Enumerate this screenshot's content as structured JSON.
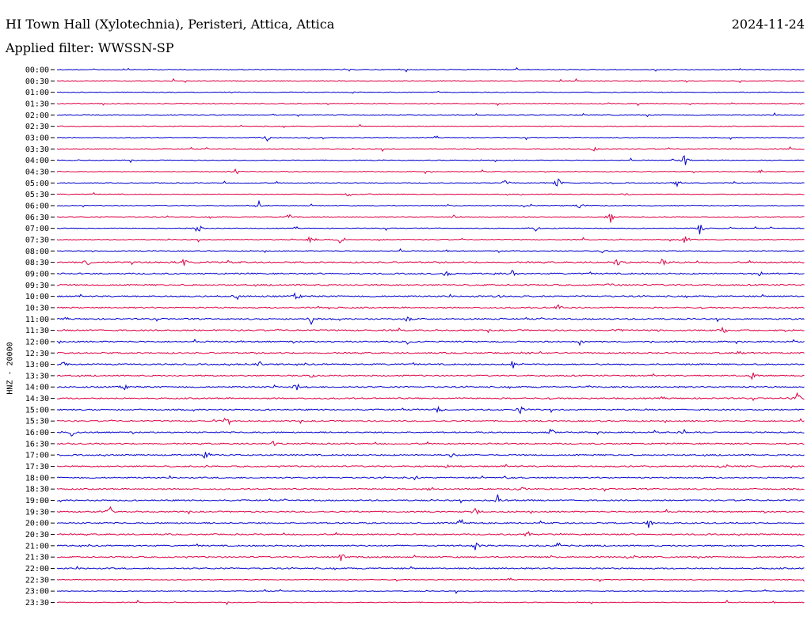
{
  "header": {
    "title": "HI Town Hall (Xylotechnia), Peristeri, Attica, Attica",
    "date": "2024-11-24",
    "filter": "Applied filter: WWSSN-SP"
  },
  "chart_data": {
    "type": "line",
    "title": "HI Town Hall (Xylotechnia), Peristeri, Attica, Attica",
    "ylabel": "HNZ - 20000",
    "xlabel": "",
    "colors": [
      "#0000cc",
      "#dd0044"
    ],
    "categories": [
      "00:00",
      "00:30",
      "01:00",
      "01:30",
      "02:00",
      "02:30",
      "03:00",
      "03:30",
      "04:00",
      "04:30",
      "05:00",
      "05:30",
      "06:00",
      "06:30",
      "07:00",
      "07:30",
      "08:00",
      "08:30",
      "09:00",
      "09:30",
      "10:00",
      "10:30",
      "11:00",
      "11:30",
      "12:00",
      "12:30",
      "13:00",
      "13:30",
      "14:00",
      "14:30",
      "15:00",
      "15:30",
      "16:00",
      "16:30",
      "17:00",
      "17:30",
      "18:00",
      "18:30",
      "19:00",
      "19:30",
      "20:00",
      "20:30",
      "21:00",
      "21:30",
      "22:00",
      "22:30",
      "23:00",
      "23:30"
    ],
    "events": [
      [],
      [],
      [],
      [],
      [],
      [],
      [
        [
          0.28,
          0.6
        ]
      ],
      [
        [
          0.72,
          0.4
        ]
      ],
      [
        [
          0.84,
          0.8
        ]
      ],
      [
        [
          0.24,
          0.5
        ],
        [
          0.94,
          0.3
        ]
      ],
      [
        [
          0.6,
          0.4
        ],
        [
          0.67,
          0.6
        ],
        [
          0.83,
          0.6
        ]
      ],
      [
        [
          0.39,
          0.3
        ],
        [
          0.76,
          0.3
        ]
      ],
      [
        [
          0.27,
          0.6
        ],
        [
          0.7,
          0.5
        ]
      ],
      [
        [
          0.31,
          0.5
        ],
        [
          0.53,
          0.3
        ],
        [
          0.74,
          0.7
        ]
      ],
      [
        [
          0.19,
          0.6
        ],
        [
          0.64,
          0.6
        ],
        [
          0.86,
          0.8
        ]
      ],
      [
        [
          0.34,
          0.6
        ],
        [
          0.38,
          0.6
        ],
        [
          0.84,
          0.6
        ]
      ],
      [
        [
          0.73,
          0.4
        ]
      ],
      [
        [
          0.04,
          0.6
        ],
        [
          0.17,
          0.6
        ],
        [
          0.75,
          0.4
        ],
        [
          0.81,
          0.4
        ]
      ],
      [
        [
          0.52,
          0.5
        ],
        [
          0.61,
          0.5
        ],
        [
          0.94,
          0.4
        ]
      ],
      [
        [
          0.74,
          0.4
        ]
      ],
      [
        [
          0.24,
          0.6
        ],
        [
          0.32,
          0.5
        ],
        [
          0.59,
          0.4
        ]
      ],
      [
        [
          0.35,
          0.4
        ],
        [
          0.67,
          0.4
        ]
      ],
      [
        [
          0.34,
          0.6
        ],
        [
          0.47,
          0.5
        ]
      ],
      [
        [
          0.75,
          0.4
        ],
        [
          0.89,
          0.5
        ]
      ],
      [
        [
          0.47,
          0.5
        ],
        [
          0.7,
          0.5
        ]
      ],
      [
        [
          0.63,
          0.3
        ],
        [
          0.91,
          0.4
        ]
      ],
      [
        [
          0.01,
          0.3
        ],
        [
          0.27,
          0.5
        ],
        [
          0.61,
          0.6
        ]
      ],
      [
        [
          0.34,
          0.4
        ],
        [
          0.93,
          0.6
        ]
      ],
      [
        [
          0.09,
          0.3
        ],
        [
          0.32,
          0.5
        ],
        [
          0.71,
          0.3
        ]
      ],
      [
        [
          0.99,
          0.8
        ]
      ],
      [
        [
          0.51,
          0.5
        ],
        [
          0.62,
          0.5
        ]
      ],
      [
        [
          0.23,
          0.4
        ]
      ],
      [
        [
          0.02,
          0.6
        ],
        [
          0.66,
          0.5
        ],
        [
          0.84,
          0.5
        ]
      ],
      [
        [
          0.29,
          0.3
        ]
      ],
      [
        [
          0.2,
          0.8
        ],
        [
          0.53,
          0.6
        ]
      ],
      [
        [
          0.2,
          0.4
        ],
        [
          0.52,
          0.4
        ]
      ],
      [
        [
          0.48,
          0.5
        ],
        [
          0.6,
          0.4
        ]
      ],
      [
        [
          0.5,
          0.3
        ],
        [
          0.62,
          0.3
        ]
      ],
      [
        [
          0.59,
          0.7
        ]
      ],
      [
        [
          0.07,
          0.5
        ],
        [
          0.56,
          0.4
        ]
      ],
      [
        [
          0.54,
          0.6
        ],
        [
          0.79,
          0.7
        ]
      ],
      [
        [
          0.63,
          0.6
        ]
      ],
      [
        [
          0.56,
          0.6
        ],
        [
          0.67,
          0.6
        ]
      ],
      [
        [
          0.38,
          0.5
        ]
      ],
      [],
      [],
      [],
      []
    ]
  }
}
